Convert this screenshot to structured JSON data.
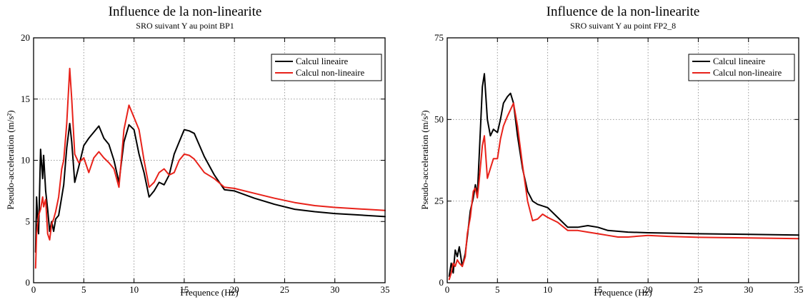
{
  "chart_data": [
    {
      "type": "line",
      "title": "Influence de la non-linearite",
      "subtitle": "SRO suivant Y au point BP1",
      "xlabel": "Frequence (Hz)",
      "ylabel": "Pseudo-acceleration (m/s²)",
      "xlim": [
        0,
        35
      ],
      "ylim": [
        0,
        20
      ],
      "xticks": [
        "0",
        "5",
        "10",
        "15",
        "20",
        "25",
        "30",
        "35"
      ],
      "yticks": [
        "0",
        "5",
        "10",
        "15",
        "20"
      ],
      "grid": true,
      "legend_position": "top-right",
      "series": [
        {
          "name": "Calcul lineaire",
          "color": "#000000",
          "x": [
            0.2,
            0.3,
            0.5,
            0.7,
            0.9,
            1.0,
            1.2,
            1.4,
            1.6,
            1.8,
            2.0,
            2.2,
            2.5,
            2.8,
            3.0,
            3.3,
            3.6,
            3.8,
            4.1,
            4.5,
            5.0,
            5.5,
            6.0,
            6.5,
            7.0,
            7.5,
            8.0,
            8.5,
            9.0,
            9.5,
            10.0,
            10.5,
            11.0,
            11.5,
            12.0,
            12.5,
            13.0,
            13.5,
            14.0,
            14.5,
            15.0,
            15.5,
            16.0,
            17.0,
            18.0,
            19.0,
            20.0,
            22.0,
            24.0,
            26.0,
            28.0,
            30.0,
            32.0,
            35.0
          ],
          "values": [
            2.5,
            7.0,
            4.0,
            10.9,
            8.5,
            10.4,
            7.5,
            6.0,
            4.2,
            5.0,
            4.2,
            5.2,
            5.5,
            7.0,
            8.0,
            11.0,
            13.0,
            11.5,
            8.2,
            9.5,
            11.2,
            11.8,
            12.3,
            12.8,
            11.8,
            11.3,
            10.0,
            8.2,
            11.5,
            12.9,
            12.5,
            10.5,
            9.0,
            7.0,
            7.5,
            8.2,
            8.0,
            8.8,
            10.5,
            11.5,
            12.5,
            12.4,
            12.2,
            10.3,
            8.8,
            7.6,
            7.5,
            6.9,
            6.4,
            6.0,
            5.8,
            5.65,
            5.55,
            5.4
          ]
        },
        {
          "name": "Calcul non-lineaire",
          "color": "#e8221a",
          "x": [
            0.2,
            0.3,
            0.5,
            0.7,
            0.9,
            1.0,
            1.2,
            1.4,
            1.6,
            1.8,
            2.0,
            2.2,
            2.5,
            2.8,
            3.0,
            3.3,
            3.6,
            3.8,
            4.1,
            4.5,
            5.0,
            5.5,
            6.0,
            6.5,
            7.0,
            7.5,
            8.0,
            8.5,
            9.0,
            9.5,
            10.0,
            10.5,
            11.0,
            11.5,
            12.0,
            12.5,
            13.0,
            13.5,
            14.0,
            14.5,
            15.0,
            15.5,
            16.0,
            17.0,
            18.0,
            19.0,
            20.0,
            22.0,
            24.0,
            26.0,
            28.0,
            30.0,
            32.0,
            35.0
          ],
          "values": [
            1.2,
            4.0,
            5.5,
            6.0,
            7.0,
            6.2,
            6.8,
            4.0,
            3.5,
            4.8,
            5.2,
            5.8,
            7.0,
            9.3,
            10.0,
            13.0,
            17.5,
            15.0,
            10.5,
            9.8,
            10.2,
            9.0,
            10.2,
            10.7,
            10.2,
            9.8,
            9.3,
            7.8,
            12.5,
            14.5,
            13.5,
            12.5,
            10.0,
            7.8,
            8.2,
            9.0,
            9.3,
            8.8,
            9.0,
            10.0,
            10.5,
            10.4,
            10.1,
            9.0,
            8.5,
            7.8,
            7.7,
            7.3,
            6.9,
            6.55,
            6.3,
            6.15,
            6.05,
            5.9
          ]
        }
      ]
    },
    {
      "type": "line",
      "title": "Influence de la non-linearite",
      "subtitle": "SRO suivant Y au point FP2_8",
      "xlabel": "Frequence (Hz)",
      "ylabel": "Pseudo-acceleration (m/s²)",
      "xlim": [
        0,
        35
      ],
      "ylim": [
        0,
        75
      ],
      "xticks": [
        "0",
        "5",
        "10",
        "15",
        "20",
        "25",
        "30",
        "35"
      ],
      "yticks": [
        "0",
        "25",
        "50",
        "75"
      ],
      "grid": true,
      "legend_position": "top-right",
      "series": [
        {
          "name": "Calcul lineaire",
          "color": "#000000",
          "x": [
            0.2,
            0.4,
            0.6,
            0.8,
            1.0,
            1.2,
            1.5,
            1.8,
            2.0,
            2.3,
            2.6,
            2.8,
            3.0,
            3.2,
            3.5,
            3.7,
            4.0,
            4.3,
            4.6,
            5.0,
            5.3,
            5.6,
            6.0,
            6.3,
            6.6,
            7.0,
            7.5,
            8.0,
            8.5,
            9.0,
            10.0,
            11.0,
            12.0,
            13.0,
            14.0,
            15.0,
            16.0,
            18.0,
            20.0,
            22.0,
            25.0,
            28.0,
            30.0,
            35.0
          ],
          "values": [
            2.0,
            6.0,
            3.0,
            10.0,
            8.0,
            11.0,
            5.0,
            9.0,
            14.0,
            22.0,
            26.0,
            30.0,
            27.0,
            40.0,
            60.0,
            64.0,
            50.0,
            45.0,
            47.0,
            46.0,
            50.0,
            55.0,
            57.0,
            58.0,
            55.0,
            45.0,
            35.0,
            28.0,
            25.0,
            24.0,
            23.0,
            20.0,
            17.0,
            17.0,
            17.5,
            17.0,
            16.0,
            15.5,
            15.3,
            15.2,
            15.0,
            14.9,
            14.8,
            14.6
          ]
        },
        {
          "name": "Calcul non-lineaire",
          "color": "#e8221a",
          "x": [
            0.2,
            0.4,
            0.6,
            0.8,
            1.0,
            1.2,
            1.5,
            1.8,
            2.0,
            2.3,
            2.6,
            2.8,
            3.0,
            3.2,
            3.5,
            3.7,
            4.0,
            4.3,
            4.6,
            5.0,
            5.3,
            5.6,
            6.0,
            6.3,
            6.6,
            7.0,
            7.5,
            8.0,
            8.5,
            9.0,
            9.5,
            10.0,
            11.0,
            12.0,
            13.0,
            14.0,
            15.0,
            16.0,
            17.0,
            18.0,
            20.0,
            22.0,
            25.0,
            28.0,
            30.0,
            35.0
          ],
          "values": [
            1.0,
            3.0,
            6.0,
            5.0,
            7.0,
            6.0,
            5.0,
            8.0,
            15.0,
            20.0,
            28.0,
            29.0,
            26.0,
            32.0,
            42.0,
            45.0,
            32.0,
            35.0,
            38.0,
            38.0,
            44.0,
            48.0,
            51.0,
            53.0,
            55.0,
            48.0,
            36.0,
            25.0,
            19.0,
            19.5,
            21.0,
            20.0,
            18.5,
            16.0,
            16.0,
            15.5,
            15.0,
            14.5,
            14.0,
            14.0,
            14.5,
            14.2,
            13.9,
            13.8,
            13.7,
            13.5
          ]
        }
      ]
    }
  ]
}
